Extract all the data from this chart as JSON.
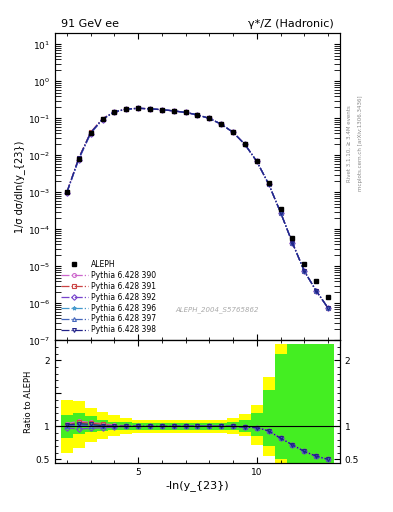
{
  "title_left": "91 GeV ee",
  "title_right": "γ*/Z (Hadronic)",
  "ylabel_main": "1/σ dσ/dln(y_{23})",
  "ylabel_ratio": "Ratio to ALEPH",
  "xlabel": "-ln(y_{23})",
  "watermark": "ALEPH_2004_S5765862",
  "right_label_top": "Rivet 3.1.10, ≥ 3.4M events",
  "right_label_bot": "mcplots.cern.ch [arXiv:1306.3436]",
  "ylim_main": [
    1e-07,
    20.0
  ],
  "xlim": [
    1.5,
    13.5
  ],
  "ylim_ratio": [
    0.44,
    2.3
  ],
  "data_x": [
    2.0,
    2.5,
    3.0,
    3.5,
    4.0,
    4.5,
    5.0,
    5.5,
    6.0,
    6.5,
    7.0,
    7.5,
    8.0,
    8.5,
    9.0,
    9.5,
    10.0,
    10.5,
    11.0,
    11.5,
    12.0,
    12.5,
    13.0
  ],
  "aleph_y": [
    0.001,
    0.008,
    0.04,
    0.095,
    0.15,
    0.178,
    0.188,
    0.182,
    0.172,
    0.16,
    0.145,
    0.125,
    0.1,
    0.07,
    0.042,
    0.02,
    0.007,
    0.0018,
    0.00035,
    6e-05,
    1.2e-05,
    4e-06,
    1.5e-06
  ],
  "mc_colors": [
    "#cc66cc",
    "#cc4444",
    "#7744cc",
    "#4499cc",
    "#4466bb",
    "#222288"
  ],
  "mc_labels": [
    "Pythia 6.428 390",
    "Pythia 6.428 391",
    "Pythia 6.428 392",
    "Pythia 6.428 396",
    "Pythia 6.428 397",
    "Pythia 6.428 398"
  ],
  "mc_markers": [
    "o",
    "s",
    "D",
    "*",
    "^",
    "v"
  ],
  "mc_linestyles": [
    "-.",
    "-.",
    "-.",
    "-.",
    "-.",
    "-."
  ],
  "ratio_scales": [
    [
      1.04,
      1.08,
      1.06,
      1.04,
      1.02,
      1.01,
      1.0,
      1.0,
      1.0,
      1.0,
      1.0,
      1.0,
      1.0,
      1.0,
      1.0,
      0.99,
      0.98,
      0.93,
      0.82,
      0.72,
      0.62,
      0.55,
      0.5
    ],
    [
      1.02,
      1.06,
      1.05,
      1.03,
      1.01,
      1.01,
      1.0,
      1.0,
      1.0,
      1.0,
      1.0,
      1.0,
      1.0,
      1.0,
      1.0,
      0.99,
      0.98,
      0.93,
      0.82,
      0.72,
      0.62,
      0.55,
      0.5
    ],
    [
      0.98,
      0.96,
      0.97,
      0.98,
      0.99,
      1.0,
      1.0,
      1.0,
      1.0,
      1.0,
      1.0,
      1.0,
      1.0,
      1.0,
      1.0,
      0.99,
      0.98,
      0.93,
      0.82,
      0.72,
      0.62,
      0.55,
      0.5
    ],
    [
      1.0,
      1.02,
      1.01,
      1.0,
      1.0,
      1.0,
      1.0,
      1.0,
      1.0,
      1.0,
      1.0,
      1.0,
      1.0,
      1.0,
      1.0,
      0.99,
      0.98,
      0.93,
      0.82,
      0.72,
      0.62,
      0.55,
      0.5
    ],
    [
      1.0,
      1.02,
      1.01,
      1.0,
      1.0,
      1.0,
      1.0,
      1.0,
      1.0,
      1.0,
      1.0,
      1.0,
      1.0,
      1.0,
      1.0,
      0.99,
      0.98,
      0.93,
      0.82,
      0.72,
      0.62,
      0.55,
      0.5
    ],
    [
      1.02,
      1.04,
      1.03,
      1.01,
      1.0,
      1.0,
      1.0,
      1.0,
      1.0,
      1.0,
      1.0,
      1.0,
      1.0,
      1.0,
      1.0,
      0.99,
      0.98,
      0.93,
      0.82,
      0.72,
      0.62,
      0.55,
      0.5
    ]
  ],
  "green_lo": [
    0.83,
    0.88,
    0.91,
    0.93,
    0.94,
    0.95,
    0.95,
    0.95,
    0.95,
    0.95,
    0.95,
    0.95,
    0.95,
    0.95,
    0.94,
    0.92,
    0.85,
    0.7,
    0.5,
    0.44,
    0.44,
    0.44,
    0.44
  ],
  "green_hi": [
    1.17,
    1.2,
    1.15,
    1.1,
    1.07,
    1.06,
    1.05,
    1.05,
    1.05,
    1.05,
    1.05,
    1.05,
    1.05,
    1.05,
    1.06,
    1.1,
    1.2,
    1.55,
    2.1,
    2.25,
    2.25,
    2.25,
    2.25
  ],
  "yellow_lo": [
    0.6,
    0.68,
    0.76,
    0.81,
    0.85,
    0.88,
    0.9,
    0.9,
    0.9,
    0.9,
    0.9,
    0.9,
    0.9,
    0.9,
    0.88,
    0.85,
    0.72,
    0.55,
    0.44,
    0.44,
    0.44,
    0.44,
    0.44
  ],
  "yellow_hi": [
    1.4,
    1.38,
    1.28,
    1.22,
    1.17,
    1.13,
    1.1,
    1.1,
    1.1,
    1.1,
    1.1,
    1.1,
    1.1,
    1.1,
    1.13,
    1.18,
    1.32,
    1.75,
    2.25,
    2.25,
    2.25,
    2.25,
    2.25
  ],
  "bin_width": 0.5
}
